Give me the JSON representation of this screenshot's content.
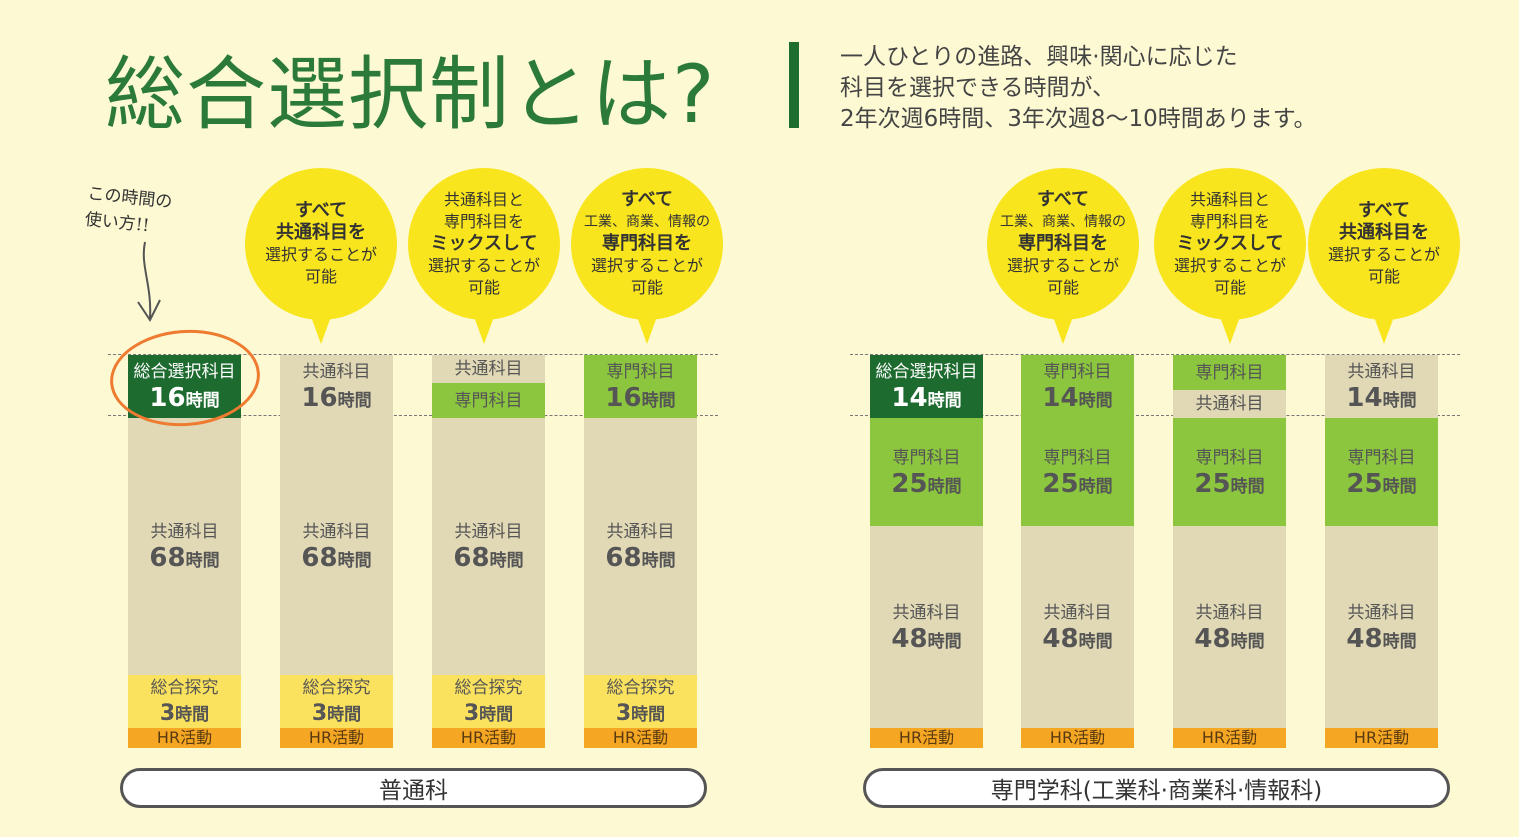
{
  "title": "総合選択制とは?",
  "intro": [
    "一人ひとりの進路、興味·関心に応じた",
    "科目を選択できる時間が、",
    "2年次週6時間、3年次週8～10時間あります。"
  ],
  "note": [
    "この時間の",
    "使い方!!"
  ],
  "bubbles": [
    {
      "lines": [
        "すべて",
        "共通科目を",
        "選択することが",
        "可能"
      ]
    },
    {
      "lines": [
        "共通科目と",
        "専門科目を",
        "ミックスして",
        "選択することが",
        "可能"
      ]
    },
    {
      "lines": [
        "すべて",
        "工業、商業、情報の",
        "専門科目を",
        "選択することが",
        "可能"
      ]
    },
    {
      "lines": [
        "すべて",
        "工業、商業、情報の",
        "専門科目を",
        "選択することが",
        "可能"
      ]
    },
    {
      "lines": [
        "共通科目と",
        "専門科目を",
        "ミックスして",
        "選択することが",
        "可能"
      ]
    },
    {
      "lines": [
        "すべて",
        "共通科目を",
        "選択することが",
        "可能"
      ]
    }
  ],
  "columns": [
    {
      "top": {
        "label": "総合選択科目",
        "hours": "16",
        "unit": "時間"
      },
      "mid": {
        "label": "共通科目",
        "hours": "68",
        "unit": "時間"
      },
      "explore": {
        "label": "総合探究",
        "hours": "3",
        "unit": "時間"
      },
      "hr": "HR活動"
    },
    {
      "top": {
        "label": "共通科目",
        "hours": "16",
        "unit": "時間"
      },
      "mid": {
        "label": "共通科目",
        "hours": "68",
        "unit": "時間"
      },
      "explore": {
        "label": "総合探究",
        "hours": "3",
        "unit": "時間"
      },
      "hr": "HR活動"
    },
    {
      "top": {
        "label_a": "共通科目",
        "label_b": "専門科目"
      },
      "mid": {
        "label": "共通科目",
        "hours": "68",
        "unit": "時間"
      },
      "explore": {
        "label": "総合探究",
        "hours": "3",
        "unit": "時間"
      },
      "hr": "HR活動"
    },
    {
      "top": {
        "label": "専門科目",
        "hours": "16",
        "unit": "時間"
      },
      "mid": {
        "label": "共通科目",
        "hours": "68",
        "unit": "時間"
      },
      "explore": {
        "label": "総合探究",
        "hours": "3",
        "unit": "時間"
      },
      "hr": "HR活動"
    },
    {
      "top": {
        "label": "総合選択科目",
        "hours": "14",
        "unit": "時間"
      },
      "spec": {
        "label": "専門科目",
        "hours": "25",
        "unit": "時間"
      },
      "mid": {
        "label": "共通科目",
        "hours": "48",
        "unit": "時間"
      },
      "hr": "HR活動"
    },
    {
      "top": {
        "label": "専門科目",
        "hours": "14",
        "unit": "時間"
      },
      "spec": {
        "label": "専門科目",
        "hours": "25",
        "unit": "時間"
      },
      "mid": {
        "label": "共通科目",
        "hours": "48",
        "unit": "時間"
      },
      "hr": "HR活動"
    },
    {
      "top": {
        "label_a": "専門科目",
        "label_b": "共通科目"
      },
      "spec": {
        "label": "専門科目",
        "hours": "25",
        "unit": "時間"
      },
      "mid": {
        "label": "共通科目",
        "hours": "48",
        "unit": "時間"
      },
      "hr": "HR活動"
    },
    {
      "top": {
        "label": "共通科目",
        "hours": "14",
        "unit": "時間"
      },
      "spec": {
        "label": "専門科目",
        "hours": "25",
        "unit": "時間"
      },
      "mid": {
        "label": "共通科目",
        "hours": "48",
        "unit": "時間"
      },
      "hr": "HR活動"
    }
  ],
  "footers": [
    "普通科",
    "専門学科(工業科·商業科·情報科)"
  ],
  "colors": {
    "title_green": "#2c7a3a",
    "bubble_yellow": "#f8e51d",
    "common_beige": "#e1d9b6",
    "specialty_green": "#8cc63f",
    "elective_dark_green": "#1e6b30",
    "explore_yellow": "#fbe25e",
    "hr_orange": "#f5a623",
    "highlight_circle": "#ee7b30"
  }
}
